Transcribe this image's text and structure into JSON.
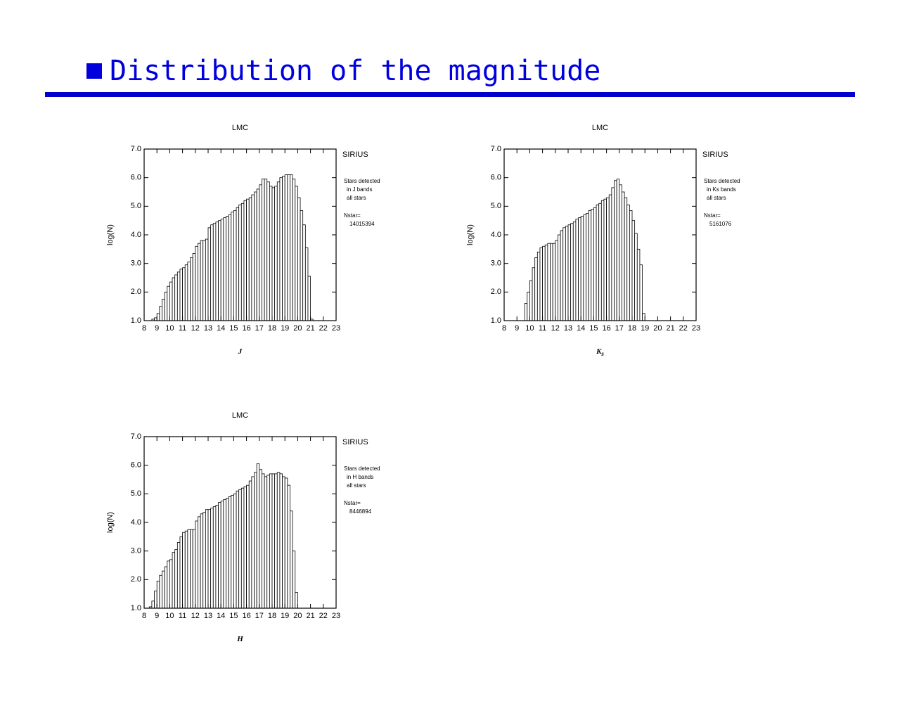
{
  "header": {
    "title": "Distribution of the magnitude"
  },
  "chart_data": [
    {
      "type": "histogram",
      "title": "LMC",
      "x_label": "J",
      "y_label": "log(N)",
      "source": "SIRIUS",
      "notes": [
        "Stars detected",
        "in J bands",
        "all stars"
      ],
      "nstar_label": "Nstar=",
      "nstar": 14015394,
      "xlim": [
        8,
        23
      ],
      "xticks": [
        8,
        9,
        10,
        11,
        12,
        13,
        14,
        15,
        16,
        17,
        18,
        19,
        20,
        21,
        22,
        23
      ],
      "ylim": [
        1,
        7
      ],
      "yticks": [
        {
          "value": 1,
          "label": "1.0"
        },
        {
          "value": 2,
          "label": "2.0"
        },
        {
          "value": 3,
          "label": "3.0"
        },
        {
          "value": 4,
          "label": "4.0"
        },
        {
          "value": 5,
          "label": "5.0"
        },
        {
          "value": 6,
          "label": "6.0"
        },
        {
          "value": 7,
          "label": "7.0"
        }
      ],
      "bins": [
        8.6,
        8.8,
        9.0,
        9.2,
        9.4,
        9.6,
        9.8,
        10.0,
        10.2,
        10.4,
        10.6,
        10.8,
        11.0,
        11.2,
        11.4,
        11.6,
        11.8,
        12.0,
        12.2,
        12.4,
        12.6,
        12.8,
        13.0,
        13.2,
        13.4,
        13.6,
        13.8,
        14.0,
        14.2,
        14.4,
        14.6,
        14.8,
        15.0,
        15.2,
        15.4,
        15.6,
        15.8,
        16.0,
        16.2,
        16.4,
        16.6,
        16.8,
        17.0,
        17.2,
        17.4,
        17.6,
        17.8,
        18.0,
        18.2,
        18.4,
        18.6,
        18.8,
        19.0,
        19.2,
        19.4,
        19.6,
        19.8,
        20.0,
        20.2,
        20.4,
        20.6,
        20.8,
        21.0,
        21.2
      ],
      "values": [
        1.05,
        1.1,
        1.25,
        1.5,
        1.75,
        2.0,
        2.2,
        2.35,
        2.5,
        2.6,
        2.7,
        2.8,
        2.85,
        2.95,
        3.05,
        3.2,
        3.35,
        3.6,
        3.7,
        3.8,
        3.8,
        3.85,
        4.25,
        4.35,
        4.4,
        4.45,
        4.5,
        4.55,
        4.6,
        4.65,
        4.7,
        4.8,
        4.85,
        4.95,
        5.05,
        5.1,
        5.2,
        5.25,
        5.3,
        5.4,
        5.5,
        5.6,
        5.75,
        5.95,
        5.95,
        5.85,
        5.7,
        5.65,
        5.7,
        5.85,
        6.0,
        6.05,
        6.1,
        6.1,
        6.1,
        5.95,
        5.7,
        5.3,
        4.85,
        4.35,
        3.55,
        2.55,
        1.05
      ]
    },
    {
      "type": "histogram",
      "title": "LMC",
      "x_label": "K",
      "x_label_sub": "s",
      "y_label": "log(N)",
      "source": "SIRIUS",
      "notes": [
        "Stars detected",
        "in Ks bands",
        "all stars"
      ],
      "nstar_label": "Nstar=",
      "nstar": 5161076,
      "xlim": [
        8,
        23
      ],
      "xticks": [
        8,
        9,
        10,
        11,
        12,
        13,
        14,
        15,
        16,
        17,
        18,
        19,
        20,
        21,
        22,
        23
      ],
      "ylim": [
        1,
        7
      ],
      "yticks": [
        {
          "value": 1,
          "label": "1.0"
        },
        {
          "value": 2,
          "label": "2.0"
        },
        {
          "value": 3,
          "label": "3.0"
        },
        {
          "value": 4,
          "label": "4.0"
        },
        {
          "value": 5,
          "label": "5.0"
        },
        {
          "value": 6,
          "label": "6.0"
        },
        {
          "value": 7,
          "label": "7.0"
        }
      ],
      "bins": [
        9.6,
        9.8,
        10.0,
        10.2,
        10.4,
        10.6,
        10.8,
        11.0,
        11.2,
        11.4,
        11.6,
        11.8,
        12.0,
        12.2,
        12.4,
        12.6,
        12.8,
        13.0,
        13.2,
        13.4,
        13.6,
        13.8,
        14.0,
        14.2,
        14.4,
        14.6,
        14.8,
        15.0,
        15.2,
        15.4,
        15.6,
        15.8,
        16.0,
        16.2,
        16.4,
        16.6,
        16.8,
        17.0,
        17.2,
        17.4,
        17.6,
        17.8,
        18.0,
        18.2,
        18.4,
        18.6,
        18.8,
        19.0
      ],
      "values": [
        1.6,
        2.0,
        2.4,
        2.85,
        3.2,
        3.4,
        3.55,
        3.6,
        3.65,
        3.7,
        3.7,
        3.7,
        3.8,
        4.0,
        4.15,
        4.25,
        4.3,
        4.35,
        4.4,
        4.45,
        4.55,
        4.6,
        4.65,
        4.7,
        4.75,
        4.85,
        4.9,
        4.95,
        5.05,
        5.1,
        5.2,
        5.25,
        5.3,
        5.4,
        5.65,
        5.9,
        5.95,
        5.75,
        5.5,
        5.3,
        5.05,
        4.85,
        4.5,
        4.05,
        3.5,
        2.95,
        1.25
      ]
    },
    {
      "type": "histogram",
      "title": "LMC",
      "x_label": "H",
      "y_label": "log(N)",
      "source": "SIRIUS",
      "notes": [
        "Stars detected",
        "in H bands",
        "all stars"
      ],
      "nstar_label": "Nstar=",
      "nstar": 8446894,
      "xlim": [
        8,
        23
      ],
      "xticks": [
        8,
        9,
        10,
        11,
        12,
        13,
        14,
        15,
        16,
        17,
        18,
        19,
        20,
        21,
        22,
        23
      ],
      "ylim": [
        1,
        7
      ],
      "yticks": [
        {
          "value": 1,
          "label": "1.0"
        },
        {
          "value": 2,
          "label": "2.0"
        },
        {
          "value": 3,
          "label": "3.0"
        },
        {
          "value": 4,
          "label": "4.0"
        },
        {
          "value": 5,
          "label": "5.0"
        },
        {
          "value": 6,
          "label": "6.0"
        },
        {
          "value": 7,
          "label": "7.0"
        }
      ],
      "bins": [
        8.4,
        8.6,
        8.8,
        9.0,
        9.2,
        9.4,
        9.6,
        9.8,
        10.0,
        10.2,
        10.4,
        10.6,
        10.8,
        11.0,
        11.2,
        11.4,
        11.6,
        11.8,
        12.0,
        12.2,
        12.4,
        12.6,
        12.8,
        13.0,
        13.2,
        13.4,
        13.6,
        13.8,
        14.0,
        14.2,
        14.4,
        14.6,
        14.8,
        15.0,
        15.2,
        15.4,
        15.6,
        15.8,
        16.0,
        16.2,
        16.4,
        16.6,
        16.8,
        17.0,
        17.2,
        17.4,
        17.6,
        17.8,
        18.0,
        18.2,
        18.4,
        18.6,
        18.8,
        19.0,
        19.2,
        19.4,
        19.6,
        19.8,
        20.0
      ],
      "values": [
        1.05,
        1.25,
        1.6,
        1.95,
        2.15,
        2.3,
        2.45,
        2.65,
        2.7,
        2.95,
        3.05,
        3.3,
        3.5,
        3.65,
        3.7,
        3.75,
        3.75,
        3.75,
        4.05,
        4.2,
        4.3,
        4.35,
        4.45,
        4.45,
        4.5,
        4.55,
        4.6,
        4.7,
        4.75,
        4.8,
        4.85,
        4.9,
        4.95,
        5.0,
        5.1,
        5.15,
        5.2,
        5.25,
        5.3,
        5.45,
        5.6,
        5.75,
        6.05,
        5.85,
        5.7,
        5.6,
        5.65,
        5.7,
        5.7,
        5.7,
        5.75,
        5.7,
        5.6,
        5.55,
        5.3,
        4.4,
        3.0,
        1.55
      ]
    }
  ]
}
